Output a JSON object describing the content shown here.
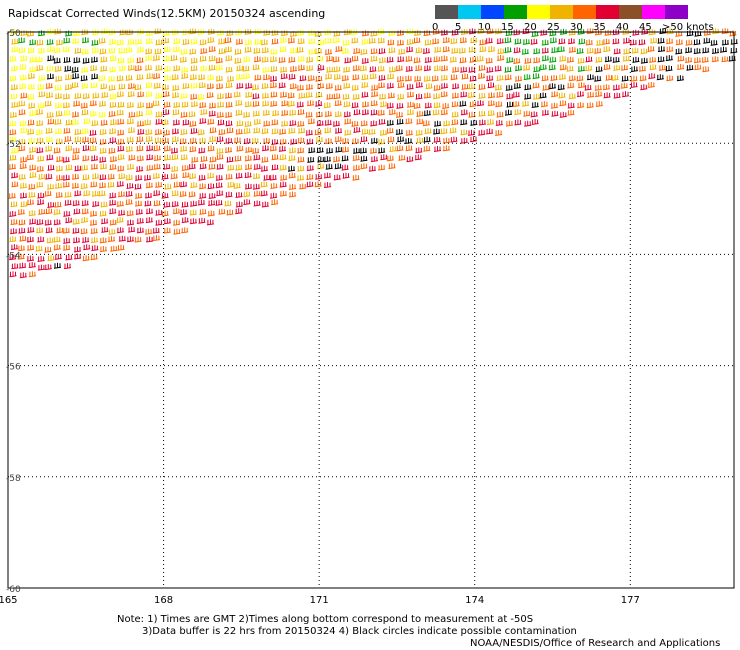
{
  "header": {
    "title": "Rapidscat Corrected Winds(12.5KM) 20150324 ascending"
  },
  "legend": {
    "bins": [
      {
        "color": "#555555",
        "label": "0"
      },
      {
        "color": "#00c8f0",
        "label": "5"
      },
      {
        "color": "#0046ff",
        "label": "10"
      },
      {
        "color": "#00a000",
        "label": "15"
      },
      {
        "color": "#ffff00",
        "label": "20"
      },
      {
        "color": "#f0b400",
        "label": "25"
      },
      {
        "color": "#ff6400",
        "label": "30"
      },
      {
        "color": "#e00032",
        "label": "35"
      },
      {
        "color": "#8c5028",
        "label": "40"
      },
      {
        "color": "#ff00ff",
        "label": "45"
      },
      {
        "color": "#8c00c8",
        "label": ">50 knots"
      }
    ]
  },
  "map": {
    "lon_ticks": [
      "165",
      "168",
      "171",
      "174",
      "177"
    ],
    "lat_ticks": [
      "-50",
      "-52",
      "-54",
      "-56",
      "-58",
      "-60"
    ],
    "lon_range": [
      165,
      179.0
    ],
    "lat_range": [
      -50,
      -60
    ],
    "swath": {
      "upper_right_lon": 179.0,
      "upper_right_lat": -50.6,
      "lower_left_lon": 165,
      "lower_left_lat": -54.6
    }
  },
  "footer": {
    "note_line1": "Note: 1) Times are GMT 2)Times along bottom correspond to measurement at -50S",
    "note_line2": "3)Data buffer is 22 hrs from 20150324 4) Black circles indicate possible contamination",
    "credit": "NOAA/NESDIS/Office of Research and Applications"
  }
}
